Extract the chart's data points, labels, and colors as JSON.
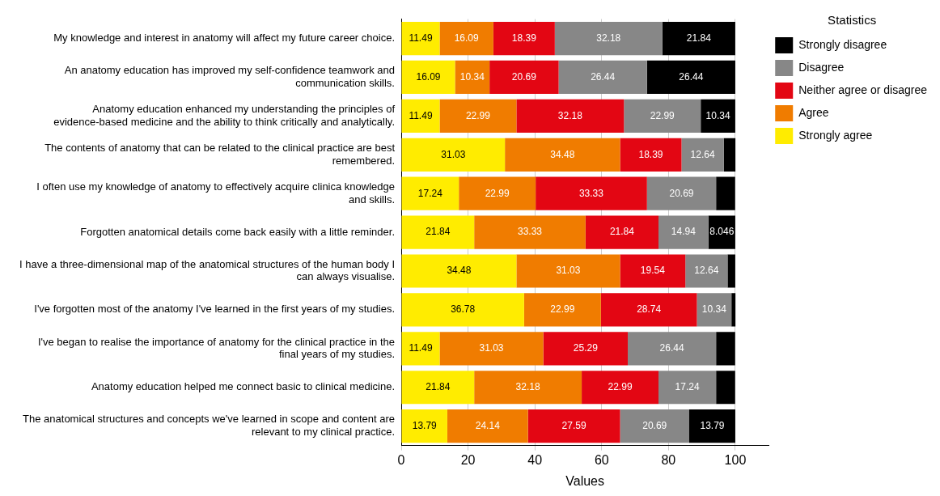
{
  "chart_data": {
    "type": "bar",
    "orientation": "horizontal",
    "stacked": true,
    "xlabel": "Values",
    "legend_title": "Statistics",
    "legend": "top right",
    "grid": "x",
    "xlim": [
      0,
      110
    ],
    "xticks": [
      0,
      20,
      40,
      60,
      80,
      100
    ],
    "categories": [
      "My knowledge and interest in anatomy will affect my future career choice.",
      "An anatomy education has improved my self-confidence teamwork and communication skills.",
      "Anatomy education enhanced my understanding the principles of evidence-based medicine and the ability to think critically and analytically.",
      "The contents of anatomy that can be related to the clinical practice are best remembered.",
      "I often use my knowledge of anatomy to effectively acquire clinica knowledge and skills.",
      "Forgotten anatomical details come back easily with a little reminder.",
      "I have a three-dimensional map of the anatomical structures of the human body I can always visualise.",
      "I've forgotten most of the anatomy I've learned in the first years of my studies.",
      "I've began to realise the importance of anatomy for the clinical practice in the final years of my studies.",
      "Anatomy education helped me connect basic to clinical medicine.",
      "The anatomical structures and concepts we've learned in scope and content are relevant to my clinical practice."
    ],
    "series": [
      {
        "name": "Strongly agree",
        "color": "#ffec00",
        "values": [
          11.49,
          16.09,
          11.49,
          31.03,
          17.24,
          21.84,
          34.48,
          36.78,
          11.49,
          21.84,
          13.79
        ],
        "value_labels": [
          "11.49",
          "16.09",
          "11.49",
          "31.03",
          "17.24",
          "21.84",
          "34.48",
          "36.78",
          "11.49",
          "21.84",
          "13.79"
        ]
      },
      {
        "name": "Agree",
        "color": "#f07c00",
        "values": [
          16.09,
          10.34,
          22.99,
          34.48,
          22.99,
          33.33,
          31.03,
          22.99,
          31.03,
          32.18,
          24.14
        ],
        "value_labels": [
          "16.09",
          "10.34",
          "22.99",
          "34.48",
          "22.99",
          "33.33",
          "31.03",
          "22.99",
          "31.03",
          "32.18",
          "24.14"
        ]
      },
      {
        "name": "Neither agree or disagree",
        "color": "#e30613",
        "values": [
          18.39,
          20.69,
          32.18,
          18.39,
          33.33,
          21.84,
          19.54,
          28.74,
          25.29,
          22.99,
          27.59
        ],
        "value_labels": [
          "18.39",
          "20.69",
          "32.18",
          "18.39",
          "33.33",
          "21.84",
          "19.54",
          "28.74",
          "25.29",
          "22.99",
          "27.59"
        ]
      },
      {
        "name": "Disagree",
        "color": "#878787",
        "values": [
          32.18,
          26.44,
          22.99,
          12.64,
          20.69,
          14.94,
          12.64,
          10.34,
          26.44,
          17.24,
          20.69
        ],
        "value_labels": [
          "32.18",
          "26.44",
          "22.99",
          "12.64",
          "20.69",
          "14.94",
          "12.64",
          "10.34",
          "26.44",
          "17.24",
          "20.69"
        ]
      },
      {
        "name": "Strongly disagree",
        "color": "#000000",
        "values": [
          21.84,
          26.44,
          10.34,
          3.5,
          5.7,
          8.046,
          2.3,
          1.2,
          5.7,
          5.7,
          13.79
        ],
        "value_labels": [
          "21.84",
          "26.44",
          "10.34",
          null,
          null,
          "8.046",
          null,
          null,
          null,
          null,
          "13.79"
        ]
      }
    ]
  }
}
